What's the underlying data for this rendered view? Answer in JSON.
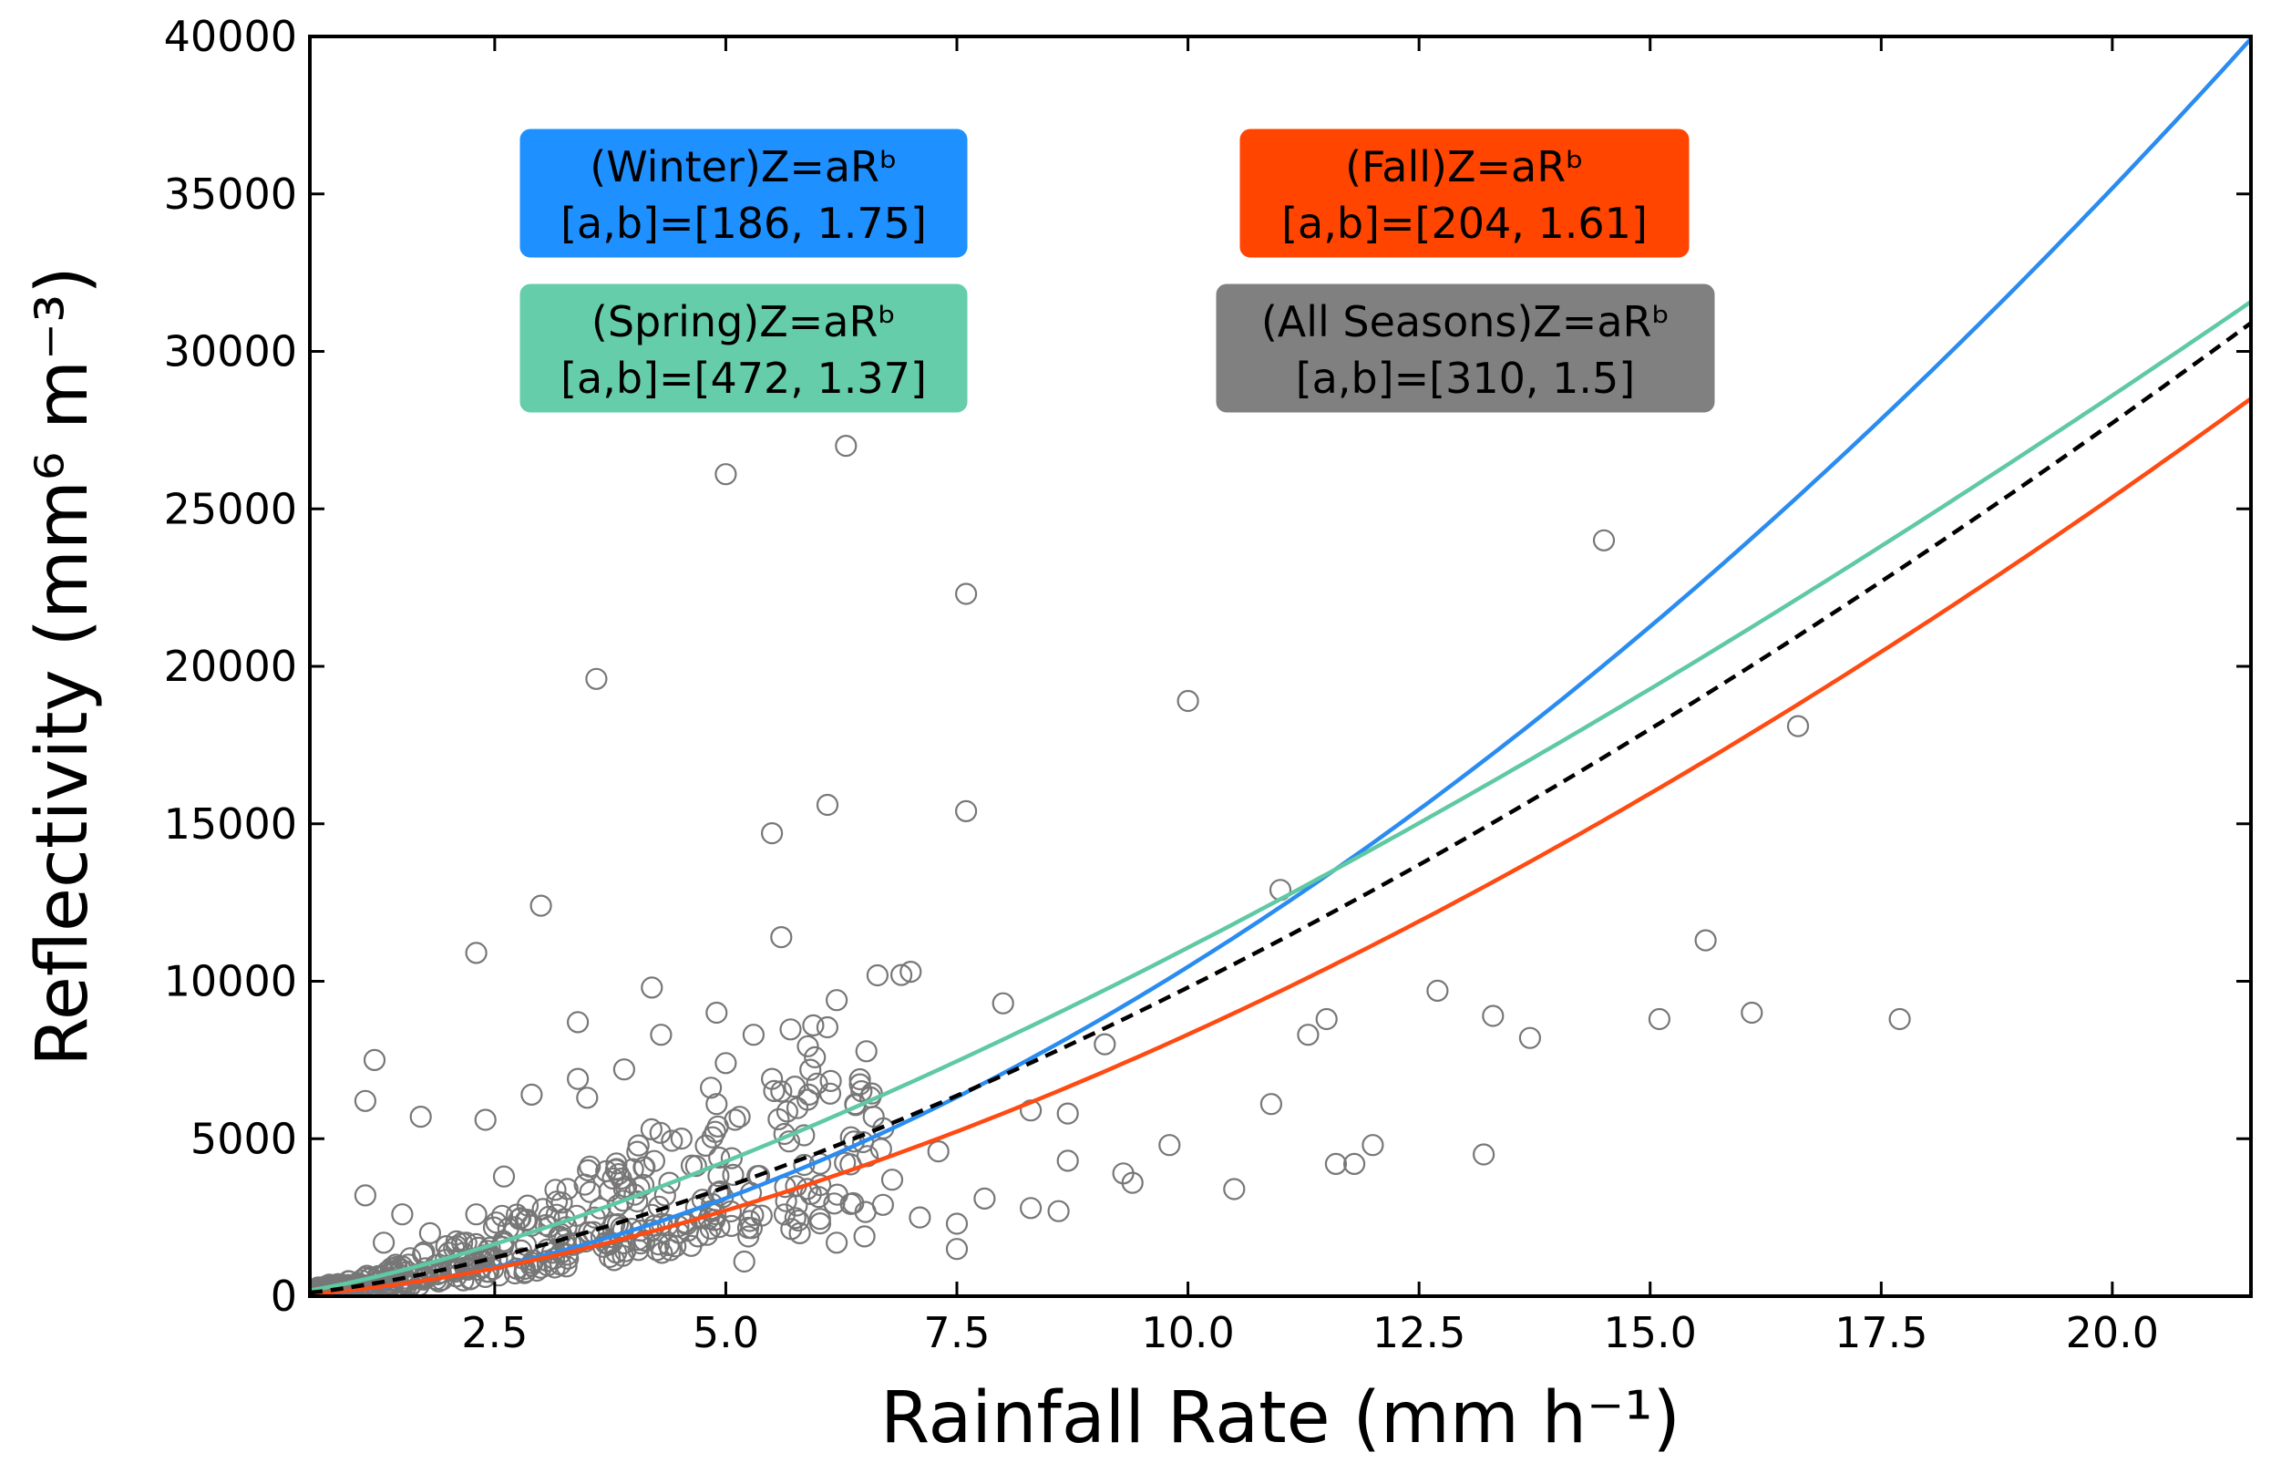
{
  "chart_data": {
    "type": "scatter",
    "title": "",
    "xlabel": "Rainfall Rate (mm h⁻¹)",
    "ylabel": "Reflectivity (mm⁶ m⁻³)",
    "xlim": [
      0.5,
      21.5
    ],
    "ylim": [
      0,
      40000
    ],
    "grid": false,
    "x_ticks": [
      2.5,
      5.0,
      7.5,
      10.0,
      12.5,
      15.0,
      17.5,
      20.0
    ],
    "x_tick_labels": [
      "2.5",
      "5.0",
      "7.5",
      "10.0",
      "12.5",
      "15.0",
      "17.5",
      "20.0"
    ],
    "y_ticks": [
      0,
      5000,
      10000,
      15000,
      20000,
      25000,
      30000,
      35000,
      40000
    ],
    "y_tick_labels": [
      "0",
      "5000",
      "10000",
      "15000",
      "20000",
      "25000",
      "30000",
      "35000",
      "40000"
    ],
    "fits": [
      {
        "name": "Winter",
        "a": 186,
        "b": 1.75,
        "color": "#2a8cf0",
        "style": "solid",
        "label_line1": "(Winter)Z=aRᵇ",
        "label_line2": "[a,b]=[186, 1.75]",
        "box_color": "#1e90ff",
        "position": "top-left"
      },
      {
        "name": "Fall",
        "a": 204,
        "b": 1.61,
        "color": "#ff4a12",
        "style": "solid",
        "label_line1": "(Fall)Z=aRᵇ",
        "label_line2": "[a,b]=[204, 1.61]",
        "box_color": "#ff4500",
        "position": "top-right"
      },
      {
        "name": "Spring",
        "a": 472,
        "b": 1.37,
        "color": "#5fc9a3",
        "style": "solid",
        "label_line1": "(Spring)Z=aRᵇ",
        "label_line2": "[a,b]=[472, 1.37]",
        "box_color": "#66cdaa",
        "position": "upper-left"
      },
      {
        "name": "All Seasons",
        "a": 310,
        "b": 1.5,
        "color": "#000000",
        "style": "dashed",
        "label_line1": "(All Seasons)Z=aRᵇ",
        "label_line2": "[a,b]=[310, 1.5]",
        "box_color": "#808080",
        "position": "upper-right"
      }
    ],
    "scatter_outliers": [
      [
        6.3,
        27000
      ],
      [
        5.0,
        26100
      ],
      [
        7.6,
        22300
      ],
      [
        3.6,
        19600
      ],
      [
        14.5,
        24000
      ],
      [
        10.0,
        18900
      ],
      [
        16.6,
        18100
      ],
      [
        6.1,
        15600
      ],
      [
        7.6,
        15400
      ],
      [
        5.5,
        14700
      ],
      [
        11.0,
        12900
      ],
      [
        3.0,
        12400
      ],
      [
        5.6,
        11400
      ],
      [
        2.3,
        10900
      ],
      [
        15.6,
        11300
      ],
      [
        7.0,
        10300
      ],
      [
        6.9,
        10200
      ],
      [
        4.2,
        9800
      ],
      [
        6.2,
        9400
      ],
      [
        8.0,
        9300
      ],
      [
        4.9,
        9000
      ],
      [
        12.7,
        9700
      ],
      [
        13.3,
        8900
      ],
      [
        16.1,
        9000
      ],
      [
        17.7,
        8800
      ],
      [
        15.1,
        8800
      ],
      [
        11.5,
        8800
      ],
      [
        11.3,
        8300
      ],
      [
        13.7,
        8200
      ],
      [
        3.4,
        8700
      ],
      [
        4.3,
        8300
      ],
      [
        5.3,
        8300
      ],
      [
        9.1,
        8000
      ],
      [
        1.2,
        7500
      ],
      [
        5.0,
        7400
      ],
      [
        3.9,
        7200
      ],
      [
        3.4,
        6900
      ],
      [
        5.5,
        6900
      ],
      [
        1.1,
        6200
      ],
      [
        2.9,
        6400
      ],
      [
        3.5,
        6300
      ],
      [
        4.9,
        6100
      ],
      [
        5.6,
        6500
      ],
      [
        5.9,
        6400
      ],
      [
        6.4,
        6100
      ],
      [
        10.9,
        6100
      ],
      [
        1.7,
        5700
      ],
      [
        2.4,
        5600
      ],
      [
        8.3,
        5900
      ],
      [
        8.7,
        5800
      ],
      [
        6.6,
        5700
      ],
      [
        5.1,
        5600
      ],
      [
        9.8,
        4800
      ],
      [
        12.0,
        4800
      ],
      [
        11.6,
        4200
      ],
      [
        11.8,
        4200
      ],
      [
        9.3,
        3900
      ],
      [
        9.4,
        3600
      ],
      [
        8.7,
        4300
      ],
      [
        10.5,
        3400
      ],
      [
        13.2,
        4500
      ],
      [
        7.5,
        2300
      ],
      [
        7.5,
        1500
      ],
      [
        8.6,
        2700
      ],
      [
        8.3,
        2800
      ],
      [
        7.8,
        3100
      ],
      [
        7.1,
        2500
      ],
      [
        6.8,
        3700
      ],
      [
        7.3,
        4600
      ],
      [
        6.7,
        2900
      ],
      [
        5.8,
        2000
      ],
      [
        6.2,
        1700
      ],
      [
        6.5,
        1900
      ],
      [
        5.2,
        1100
      ],
      [
        4.7,
        1900
      ],
      [
        4.2,
        2100
      ],
      [
        3.7,
        1700
      ],
      [
        3.9,
        3400
      ],
      [
        2.6,
        3800
      ],
      [
        2.3,
        2600
      ],
      [
        1.8,
        2000
      ],
      [
        1.5,
        2600
      ],
      [
        1.3,
        1700
      ],
      [
        1.1,
        3200
      ],
      [
        2.8,
        1200
      ]
    ]
  }
}
